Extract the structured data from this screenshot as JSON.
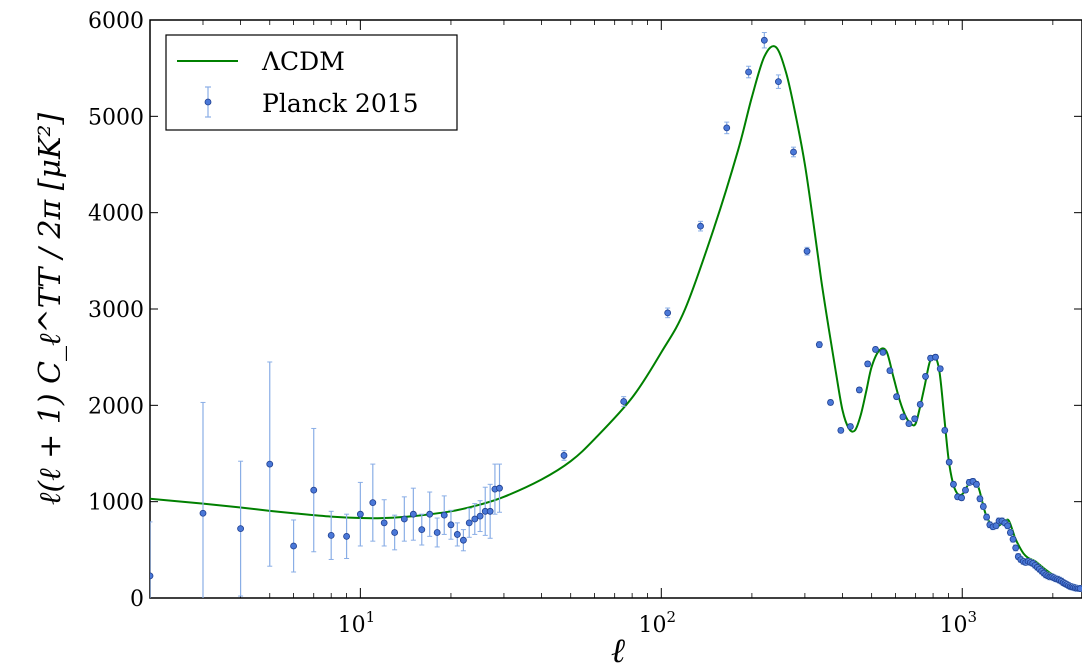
{
  "chart_data": {
    "type": "scatter",
    "xscale": "log",
    "xlim": [
      2,
      2500
    ],
    "ylim": [
      0,
      6000
    ],
    "xlabel": "ℓ",
    "ylabel": "ℓ(ℓ + 1) C_ℓ^TT / 2π [μK²]",
    "y_ticks": [
      "0",
      "1000",
      "2000",
      "3000",
      "4000",
      "5000",
      "6000"
    ],
    "x_ticks": [
      {
        "value": 10,
        "base": "10",
        "exp": "1"
      },
      {
        "value": 100,
        "base": "10",
        "exp": "2"
      },
      {
        "value": 1000,
        "base": "10",
        "exp": "3"
      }
    ],
    "legend": {
      "position": "upper left",
      "model_label": "ΛCDM",
      "data_label": "Planck 2015"
    },
    "colors": {
      "model": "#008000",
      "data": "#4a78d8",
      "errorbar": "#8aaee6"
    },
    "series": [
      {
        "name": "ΛCDM",
        "kind": "line",
        "x": [
          2,
          3,
          4,
          5,
          6,
          8,
          10,
          12,
          15,
          20,
          25,
          30,
          40,
          50,
          60,
          80,
          100,
          120,
          150,
          180,
          200,
          220,
          240,
          260,
          280,
          300,
          320,
          340,
          360,
          380,
          400,
          420,
          440,
          460,
          480,
          500,
          530,
          560,
          590,
          620,
          650,
          680,
          700,
          720,
          750,
          780,
          810,
          840,
          870,
          900,
          930,
          960,
          990,
          1020,
          1050,
          1080,
          1110,
          1140,
          1170,
          1200,
          1250,
          1300,
          1350,
          1400,
          1430,
          1470,
          1500,
          1550,
          1600,
          1650,
          1700,
          1750,
          1800,
          1900,
          2000,
          2100,
          2200,
          2300,
          2500
        ],
        "y": [
          1030,
          980,
          940,
          905,
          880,
          845,
          830,
          830,
          850,
          900,
          970,
          1050,
          1230,
          1420,
          1650,
          2080,
          2550,
          3000,
          3850,
          4650,
          5200,
          5620,
          5720,
          5450,
          5000,
          4500,
          3900,
          3300,
          2800,
          2350,
          1950,
          1760,
          1740,
          1900,
          2150,
          2400,
          2570,
          2560,
          2300,
          2050,
          1880,
          1800,
          1810,
          1950,
          2200,
          2450,
          2510,
          2350,
          1900,
          1450,
          1200,
          1090,
          1070,
          1110,
          1190,
          1230,
          1210,
          1120,
          980,
          860,
          760,
          740,
          770,
          810,
          800,
          700,
          620,
          530,
          460,
          420,
          400,
          380,
          350,
          290,
          240,
          200,
          170,
          140,
          110
        ]
      },
      {
        "name": "Planck 2015",
        "kind": "errorbar",
        "x": [
          2,
          3,
          4,
          5,
          6,
          7,
          8,
          9,
          10,
          11,
          12,
          13,
          14,
          15,
          16,
          17,
          18,
          19,
          20,
          21,
          22,
          23,
          24,
          25,
          26,
          27,
          28,
          29,
          47.5,
          75,
          105,
          135,
          165,
          195,
          220,
          245,
          275,
          305,
          335,
          365,
          395,
          425,
          455,
          485,
          515,
          545,
          575,
          605,
          635,
          665,
          695,
          725,
          755,
          785,
          815,
          845,
          875,
          905,
          935,
          965,
          995,
          1025,
          1055,
          1085,
          1115,
          1145,
          1175,
          1205,
          1235,
          1265,
          1295,
          1325,
          1355,
          1385,
          1415,
          1445,
          1475,
          1505,
          1535,
          1565,
          1595,
          1625,
          1655,
          1685,
          1715,
          1745,
          1775,
          1805,
          1835,
          1865,
          1895,
          1925,
          1955,
          1985,
          2015,
          2045,
          2075,
          2105,
          2135,
          2165,
          2195,
          2225,
          2255,
          2285,
          2315,
          2345,
          2375,
          2405,
          2435,
          2465
        ],
        "y": [
          230,
          880,
          720,
          1390,
          540,
          1120,
          650,
          640,
          870,
          990,
          780,
          680,
          820,
          870,
          710,
          870,
          680,
          860,
          760,
          660,
          600,
          780,
          820,
          850,
          900,
          900,
          1130,
          1140,
          1480,
          2040,
          2960,
          3860,
          4880,
          5460,
          5790,
          5360,
          4630,
          3600,
          2630,
          2030,
          1740,
          1780,
          2160,
          2430,
          2580,
          2550,
          2360,
          2090,
          1880,
          1810,
          1860,
          2010,
          2300,
          2490,
          2500,
          2380,
          1740,
          1410,
          1180,
          1050,
          1040,
          1120,
          1200,
          1210,
          1180,
          1030,
          950,
          840,
          760,
          740,
          750,
          800,
          800,
          780,
          750,
          680,
          610,
          520,
          430,
          400,
          380,
          370,
          380,
          370,
          360,
          340,
          320,
          300,
          280,
          260,
          240,
          230,
          220,
          220,
          210,
          200,
          195,
          185,
          175,
          160,
          150,
          140,
          130,
          120,
          115,
          110,
          105,
          100,
          100,
          98
        ],
        "err": [
          560,
          1150,
          700,
          1060,
          270,
          640,
          250,
          230,
          330,
          400,
          240,
          180,
          230,
          270,
          160,
          230,
          150,
          200,
          150,
          120,
          110,
          150,
          160,
          160,
          250,
          280,
          260,
          250,
          50,
          50,
          50,
          50,
          60,
          60,
          80,
          70,
          50,
          40,
          30,
          25,
          25,
          25,
          25,
          25,
          25,
          25,
          25,
          25,
          25,
          25,
          25,
          25,
          25,
          25,
          25,
          25,
          25,
          25,
          25,
          25,
          25,
          25,
          30,
          30,
          30,
          30,
          30,
          30,
          30,
          30,
          30,
          30,
          30,
          30,
          30,
          30,
          30,
          30,
          30,
          30,
          30,
          30,
          30,
          30,
          30,
          30,
          30,
          30,
          30,
          30,
          30,
          30,
          30,
          30,
          30,
          30,
          30,
          30,
          30,
          30,
          30,
          30,
          30,
          30,
          30,
          30,
          30,
          30,
          30,
          30
        ]
      }
    ]
  }
}
